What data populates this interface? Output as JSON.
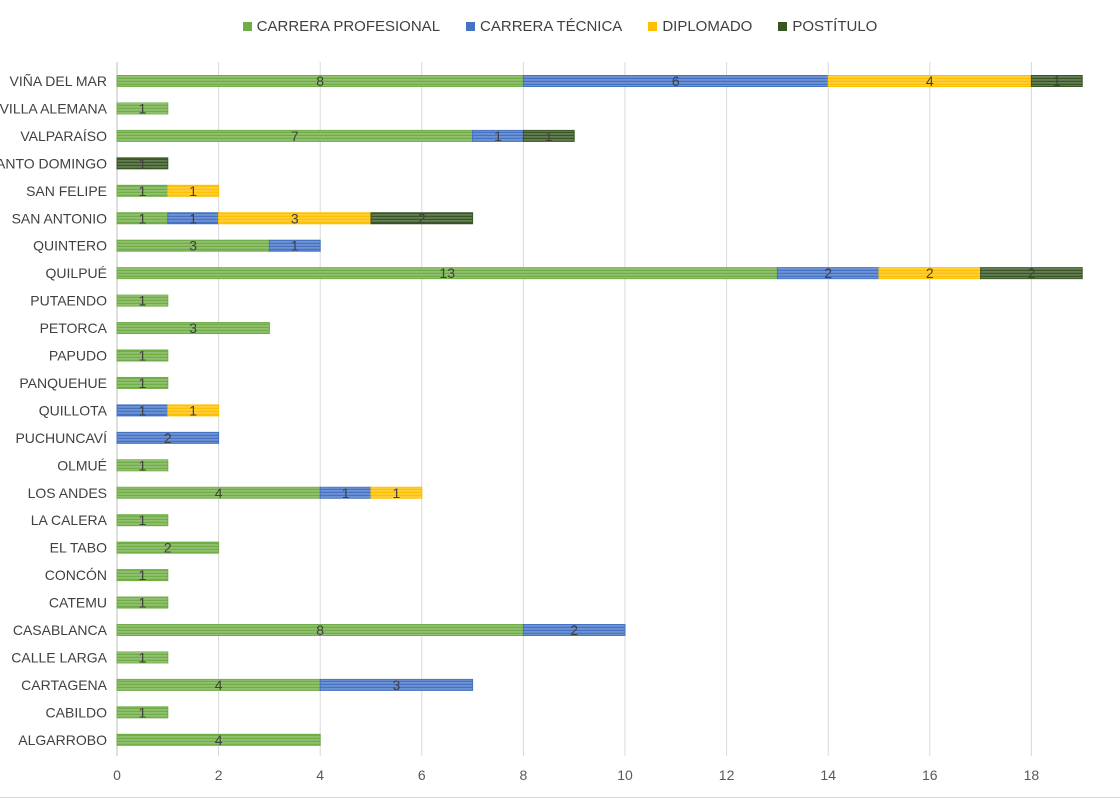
{
  "chart_data": {
    "type": "bar",
    "orientation": "horizontal",
    "stacked": true,
    "title": "",
    "xlabel": "",
    "ylabel": "",
    "xlim": [
      0,
      19
    ],
    "x_ticks": [
      "0",
      "2",
      "4",
      "6",
      "8",
      "10",
      "12",
      "14",
      "16",
      "18"
    ],
    "grid": true,
    "legend_position": "top-center",
    "categories": [
      "VIÑA DEL MAR",
      "VILLA ALEMANA",
      "VALPARAÍSO",
      "SANTO DOMINGO",
      "SAN FELIPE",
      "SAN ANTONIO",
      "QUINTERO",
      "QUILPUÉ",
      "PUTAENDO",
      "PETORCA",
      "PAPUDO",
      "PANQUEHUE",
      "QUILLOTA",
      "PUCHUNCAVÍ",
      "OLMUÉ",
      "LOS ANDES",
      "LA CALERA",
      "EL TABO",
      "CONCÓN",
      "CATEMU",
      "CASABLANCA",
      "CALLE LARGA",
      "CARTAGENA",
      "CABILDO",
      "ALGARROBO"
    ],
    "series": [
      {
        "name": "CARRERA PROFESIONAL",
        "color": "#70ad47",
        "values": [
          8,
          1,
          7,
          0,
          1,
          1,
          3,
          13,
          1,
          3,
          1,
          1,
          0,
          0,
          1,
          4,
          1,
          2,
          1,
          1,
          8,
          1,
          4,
          1,
          4
        ]
      },
      {
        "name": "CARRERA TÉCNICA",
        "color": "#4472c4",
        "values": [
          6,
          0,
          1,
          0,
          0,
          1,
          1,
          2,
          0,
          0,
          0,
          0,
          1,
          2,
          0,
          1,
          0,
          0,
          0,
          0,
          2,
          0,
          3,
          0,
          0
        ]
      },
      {
        "name": "DIPLOMADO",
        "color": "#ffc000",
        "values": [
          4,
          0,
          0,
          0,
          1,
          3,
          0,
          2,
          0,
          0,
          0,
          0,
          1,
          0,
          0,
          1,
          0,
          0,
          0,
          0,
          0,
          0,
          0,
          0,
          0
        ]
      },
      {
        "name": "POSTÍTULO",
        "color": "#375623",
        "values": [
          1,
          0,
          1,
          1,
          0,
          2,
          0,
          2,
          0,
          0,
          0,
          0,
          0,
          0,
          0,
          0,
          0,
          0,
          0,
          0,
          0,
          0,
          0,
          0,
          0
        ]
      }
    ]
  }
}
